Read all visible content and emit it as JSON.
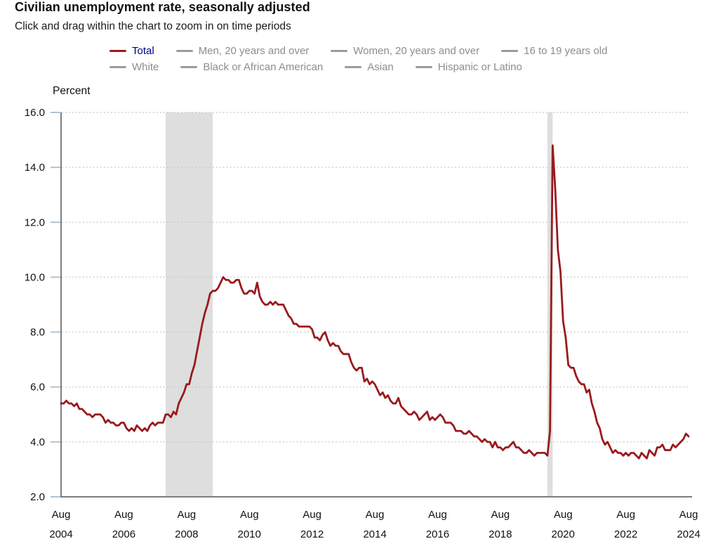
{
  "header": {
    "title": "Civilian unemployment rate, seasonally adjusted",
    "subtitle": "Click and drag within the chart to zoom in on time periods"
  },
  "legend": {
    "rows": [
      [
        {
          "label": "Total",
          "active": true
        },
        {
          "label": "Men, 20 years and over",
          "active": false
        },
        {
          "label": "Women, 20 years and over",
          "active": false
        },
        {
          "label": "16 to 19 years old",
          "active": false
        }
      ],
      [
        {
          "label": "White",
          "active": false
        },
        {
          "label": "Black or African American",
          "active": false
        },
        {
          "label": "Asian",
          "active": false
        },
        {
          "label": "Hispanic or Latino",
          "active": false
        }
      ]
    ]
  },
  "chart_data": {
    "type": "line",
    "title": "Civilian unemployment rate, seasonally adjusted",
    "ylabel": "Percent",
    "ylim": [
      2.0,
      16.0
    ],
    "ytick_labels": [
      "16.0",
      "14.0",
      "12.0",
      "10.0",
      "8.0",
      "6.0",
      "4.0",
      "2.0"
    ],
    "grid": "dotted horizontal gridlines",
    "legend_position": "top",
    "frequency": "monthly",
    "x_start": "2004-08",
    "x_end": "2024-08",
    "xtick_month_interval": 24,
    "xtick_labels": [
      "Aug 2004",
      "Aug 2006",
      "Aug 2008",
      "Aug 2010",
      "Aug 2012",
      "Aug 2014",
      "Aug 2016",
      "Aug 2018",
      "Aug 2020",
      "Aug 2022",
      "Aug 2024"
    ],
    "recession_bands": [
      {
        "from": "2007-12",
        "to": "2009-06"
      },
      {
        "from": "2020-02",
        "to": "2020-04"
      }
    ],
    "series": [
      {
        "name": "Total",
        "values": [
          5.4,
          5.4,
          5.5,
          5.4,
          5.4,
          5.3,
          5.4,
          5.2,
          5.2,
          5.1,
          5.0,
          5.0,
          4.9,
          5.0,
          5.0,
          5.0,
          4.9,
          4.7,
          4.8,
          4.7,
          4.7,
          4.6,
          4.6,
          4.7,
          4.7,
          4.5,
          4.4,
          4.5,
          4.4,
          4.6,
          4.5,
          4.4,
          4.5,
          4.4,
          4.6,
          4.7,
          4.6,
          4.7,
          4.7,
          4.7,
          5.0,
          5.0,
          4.9,
          5.1,
          5.0,
          5.4,
          5.6,
          5.8,
          6.1,
          6.1,
          6.5,
          6.8,
          7.3,
          7.8,
          8.3,
          8.7,
          9.0,
          9.4,
          9.5,
          9.5,
          9.6,
          9.8,
          10.0,
          9.9,
          9.9,
          9.8,
          9.8,
          9.9,
          9.9,
          9.6,
          9.4,
          9.4,
          9.5,
          9.5,
          9.4,
          9.8,
          9.3,
          9.1,
          9.0,
          9.0,
          9.1,
          9.0,
          9.1,
          9.0,
          9.0,
          9.0,
          8.8,
          8.6,
          8.5,
          8.3,
          8.3,
          8.2,
          8.2,
          8.2,
          8.2,
          8.2,
          8.1,
          7.8,
          7.8,
          7.7,
          7.9,
          8.0,
          7.7,
          7.5,
          7.6,
          7.5,
          7.5,
          7.3,
          7.2,
          7.2,
          7.2,
          6.9,
          6.7,
          6.6,
          6.7,
          6.7,
          6.2,
          6.3,
          6.1,
          6.2,
          6.1,
          5.9,
          5.7,
          5.8,
          5.6,
          5.7,
          5.5,
          5.4,
          5.4,
          5.6,
          5.3,
          5.2,
          5.1,
          5.0,
          5.0,
          5.1,
          5.0,
          4.8,
          4.9,
          5.0,
          5.1,
          4.8,
          4.9,
          4.8,
          4.9,
          5.0,
          4.9,
          4.7,
          4.7,
          4.7,
          4.6,
          4.4,
          4.4,
          4.4,
          4.3,
          4.3,
          4.4,
          4.3,
          4.2,
          4.2,
          4.1,
          4.0,
          4.1,
          4.0,
          4.0,
          3.8,
          4.0,
          3.8,
          3.8,
          3.7,
          3.8,
          3.8,
          3.9,
          4.0,
          3.8,
          3.8,
          3.7,
          3.6,
          3.6,
          3.7,
          3.6,
          3.5,
          3.6,
          3.6,
          3.6,
          3.6,
          3.5,
          4.4,
          14.8,
          13.2,
          11.0,
          10.2,
          8.4,
          7.8,
          6.8,
          6.7,
          6.7,
          6.4,
          6.2,
          6.1,
          6.1,
          5.8,
          5.9,
          5.4,
          5.1,
          4.7,
          4.5,
          4.1,
          3.9,
          4.0,
          3.8,
          3.6,
          3.7,
          3.6,
          3.6,
          3.5,
          3.6,
          3.5,
          3.6,
          3.6,
          3.5,
          3.4,
          3.6,
          3.5,
          3.4,
          3.7,
          3.6,
          3.5,
          3.8,
          3.8,
          3.9,
          3.7,
          3.7,
          3.7,
          3.9,
          3.8,
          3.9,
          4.0,
          4.1,
          4.3,
          4.2
        ]
      }
    ],
    "colors": {
      "line": "#9a1a1d",
      "active_legend_text": "#00008b",
      "inactive_legend_text": "#8d8d8d",
      "inactive_swatch": "#9b9b9b",
      "recession_band": "#dedede",
      "gridline": "#c6c6c6",
      "axis": "#7e7e7e",
      "y_tick": "#b0c4d4",
      "label_text": "#111111"
    }
  }
}
